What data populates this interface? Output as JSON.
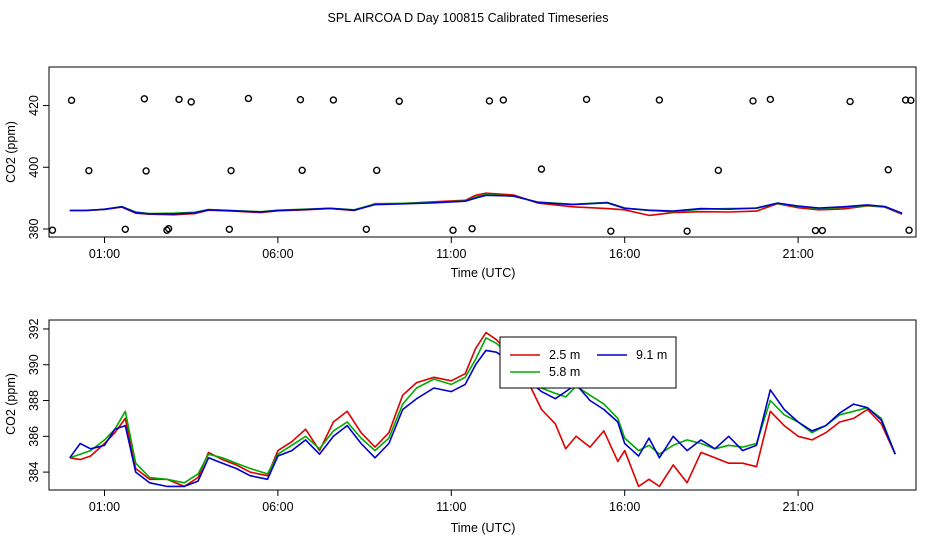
{
  "figure": {
    "title": "SPL AIRCOA D  Day 100815  Calibrated Timeseries"
  },
  "chart_data": [
    {
      "type": "line",
      "panel": "top",
      "title": "",
      "xlabel": "Time (UTC)",
      "ylabel": "CO2 (ppm)",
      "xlim": [
        -0.6,
        24.4
      ],
      "ylim": [
        377.4,
        432.5
      ],
      "x_ticks": [
        1,
        6,
        11,
        16,
        21
      ],
      "x_tick_labels": [
        "01:00",
        "06:00",
        "11:00",
        "16:00",
        "21:00"
      ],
      "y_ticks": [
        380,
        400,
        420
      ],
      "y_tick_labels": [
        "380",
        "400",
        "420"
      ],
      "grid": false,
      "series": [
        {
          "name": "2.5 m",
          "color": "#dd0000",
          "x": [
            0,
            0.5,
            1,
            1.5,
            1.9,
            2.3,
            3,
            3.6,
            4,
            4.7,
            5.5,
            6,
            6.8,
            7.5,
            8.2,
            8.8,
            9.5,
            10.5,
            11.4,
            11.7,
            12,
            12.8,
            13.5,
            14.5,
            15.5,
            16,
            16.7,
            17.4,
            18.2,
            19,
            19.8,
            20.4,
            21,
            21.6,
            22.3,
            23,
            23.5,
            24
          ],
          "y": [
            386.0,
            386.0,
            386.3,
            387.1,
            385.1,
            384.8,
            384.6,
            385.0,
            386.1,
            385.8,
            385.3,
            385.9,
            386.2,
            386.6,
            386.0,
            388.2,
            388.2,
            388.8,
            389.3,
            390.9,
            391.6,
            391.0,
            388.4,
            387.2,
            386.6,
            386.2,
            384.4,
            385.3,
            385.6,
            385.5,
            385.8,
            388.2,
            386.9,
            386.2,
            386.5,
            387.5,
            387.1,
            384.8
          ]
        },
        {
          "name": "5.8 m",
          "color": "#00aa00",
          "x": [
            0,
            0.5,
            1,
            1.5,
            1.9,
            2.3,
            3,
            3.6,
            4,
            4.7,
            5.5,
            6,
            6.8,
            7.5,
            8.2,
            8.8,
            9.5,
            10.5,
            11.4,
            11.7,
            12,
            12.8,
            13.5,
            14.5,
            15.5,
            16,
            16.7,
            17.4,
            18.2,
            19,
            19.8,
            20.4,
            21,
            21.6,
            22.3,
            23,
            23.5,
            24
          ],
          "y": [
            386.0,
            386.1,
            386.3,
            387.3,
            385.5,
            385.0,
            385.1,
            385.4,
            386.3,
            386.0,
            385.6,
            386.1,
            386.4,
            386.7,
            386.2,
            388.1,
            388.3,
            388.6,
            389.1,
            390.3,
            391.2,
            390.6,
            388.7,
            388.0,
            388.6,
            386.8,
            386.0,
            385.6,
            386.4,
            386.6,
            386.7,
            388.3,
            387.3,
            386.6,
            387.0,
            387.6,
            387.2,
            385.0
          ]
        },
        {
          "name": "9.1 m",
          "color": "#0000cc",
          "x": [
            0,
            0.5,
            1,
            1.5,
            1.9,
            2.3,
            3,
            3.6,
            4,
            4.7,
            5.5,
            6,
            6.8,
            7.5,
            8.2,
            8.8,
            9.5,
            10.5,
            11.4,
            11.7,
            12,
            12.8,
            13.5,
            14.5,
            15.5,
            16,
            16.7,
            17.4,
            18.2,
            19,
            19.8,
            20.4,
            21,
            21.6,
            22.3,
            23,
            23.5,
            24
          ],
          "y": [
            386.0,
            386.0,
            386.4,
            387.2,
            385.3,
            384.9,
            384.9,
            385.2,
            386.2,
            385.9,
            385.5,
            386.0,
            386.3,
            386.7,
            386.1,
            387.9,
            388.1,
            388.5,
            389.0,
            390.0,
            390.9,
            390.7,
            388.6,
            387.9,
            388.5,
            386.7,
            386.1,
            385.8,
            386.6,
            386.4,
            386.8,
            388.4,
            387.4,
            386.8,
            387.2,
            387.8,
            387.3,
            385.1
          ]
        }
      ],
      "outliers": {
        "marker": "open circle",
        "x": [
          -0.5,
          0.05,
          0.55,
          1.6,
          2.15,
          2.2,
          2.8,
          2.85,
          3.15,
          3.5,
          4.6,
          4.65,
          5.15,
          6.65,
          6.7,
          7.6,
          8.55,
          8.85,
          9.5,
          11.05,
          11.6,
          12.1,
          12.5,
          13.6,
          14.9,
          15.6,
          17,
          17.8,
          18.7,
          19.7,
          20.2,
          21.5,
          21.7,
          22.5,
          23.6,
          24.1,
          24.2,
          24.25
        ],
        "y": [
          379.6,
          421.7,
          398.9,
          379.9,
          422.2,
          398.8,
          379.6,
          380.1,
          422.0,
          421.2,
          379.9,
          398.9,
          422.3,
          421.9,
          399.0,
          421.8,
          379.9,
          399.0,
          421.4,
          379.6,
          380.1,
          421.5,
          421.8,
          399.4,
          422.0,
          379.3,
          421.8,
          379.3,
          399.0,
          421.5,
          422.0,
          379.5,
          379.5,
          421.3,
          399.2,
          421.8,
          379.6,
          421.7
        ]
      }
    },
    {
      "type": "line",
      "panel": "bottom",
      "title": "",
      "xlabel": "Time (UTC)",
      "ylabel": "CO2 (ppm)",
      "xlim": [
        -0.6,
        24.4
      ],
      "ylim": [
        383.0,
        392.5
      ],
      "x_ticks": [
        1,
        6,
        11,
        16,
        21
      ],
      "x_tick_labels": [
        "01:00",
        "06:00",
        "11:00",
        "16:00",
        "21:00"
      ],
      "y_ticks": [
        384,
        386,
        388,
        390,
        392
      ],
      "y_tick_labels": [
        "384",
        "386",
        "388",
        "390",
        "392"
      ],
      "grid": false,
      "legend": {
        "placement": "top-center",
        "entries": [
          {
            "label": "2.5 m",
            "color": "#dd0000"
          },
          {
            "label": "9.1 m",
            "color": "#0000cc"
          },
          {
            "label": "5.8 m",
            "color": "#00aa00"
          }
        ]
      },
      "series": [
        {
          "name": "2.5 m",
          "color": "#dd0000",
          "x": [
            0,
            0.3,
            0.6,
            1,
            1.3,
            1.6,
            1.9,
            2.3,
            2.8,
            3.3,
            3.7,
            4,
            4.4,
            4.8,
            5.2,
            5.7,
            6,
            6.4,
            6.8,
            7.2,
            7.6,
            8.0,
            8.4,
            8.8,
            9.2,
            9.6,
            10,
            10.5,
            11,
            11.4,
            11.7,
            12,
            12.3,
            12.7,
            13,
            13.3,
            13.6,
            14,
            14.3,
            14.6,
            15,
            15.4,
            15.8,
            16,
            16.4,
            16.7,
            17,
            17.4,
            17.8,
            18.2,
            18.6,
            19,
            19.4,
            19.8,
            20.2,
            20.6,
            21,
            21.4,
            21.8,
            22.2,
            22.6,
            23,
            23.4,
            23.8
          ],
          "y": [
            384.8,
            384.7,
            384.9,
            385.6,
            386.2,
            387.0,
            384.2,
            383.6,
            383.6,
            383.2,
            383.7,
            385.1,
            384.7,
            384.4,
            384.0,
            383.8,
            385.2,
            385.7,
            386.4,
            385.2,
            386.8,
            387.4,
            386.2,
            385.4,
            386.2,
            388.3,
            389.0,
            389.3,
            389.1,
            389.5,
            390.9,
            391.8,
            391.4,
            390.6,
            390.3,
            388.7,
            387.5,
            386.7,
            385.3,
            386.0,
            385.4,
            386.3,
            384.6,
            385.2,
            383.2,
            383.6,
            383.2,
            384.4,
            383.4,
            385.1,
            384.8,
            384.5,
            384.5,
            384.3,
            387.4,
            386.6,
            386.0,
            385.8,
            386.2,
            386.8,
            387.0,
            387.5,
            386.7,
            385.0
          ]
        },
        {
          "name": "5.8 m",
          "color": "#00aa00",
          "x": [
            0,
            0.3,
            0.6,
            1,
            1.3,
            1.6,
            1.9,
            2.3,
            2.8,
            3.3,
            3.7,
            4,
            4.4,
            4.8,
            5.2,
            5.7,
            6,
            6.4,
            6.8,
            7.2,
            7.6,
            8.0,
            8.4,
            8.8,
            9.2,
            9.6,
            10,
            10.5,
            11,
            11.4,
            11.7,
            12,
            12.3,
            12.7,
            13,
            13.3,
            13.6,
            14,
            14.3,
            14.6,
            15,
            15.4,
            15.8,
            16,
            16.4,
            16.7,
            17,
            17.4,
            17.8,
            18.2,
            18.6,
            19,
            19.4,
            19.8,
            20.2,
            20.6,
            21,
            21.4,
            21.8,
            22.2,
            22.6,
            23,
            23.4,
            23.8
          ],
          "y": [
            384.8,
            385.0,
            385.2,
            385.8,
            386.4,
            387.4,
            384.5,
            383.7,
            383.6,
            383.4,
            383.9,
            385.0,
            384.8,
            384.5,
            384.2,
            383.9,
            385.0,
            385.5,
            386.0,
            385.3,
            386.3,
            386.8,
            385.9,
            385.2,
            385.9,
            387.8,
            388.7,
            389.2,
            388.9,
            389.3,
            390.3,
            391.5,
            391.2,
            390.5,
            390.4,
            389.3,
            388.7,
            388.4,
            388.2,
            388.8,
            388.3,
            387.8,
            387.0,
            385.9,
            385.2,
            385.5,
            385.0,
            385.5,
            385.8,
            385.6,
            385.3,
            385.5,
            385.4,
            385.6,
            388.0,
            387.2,
            386.8,
            386.2,
            386.6,
            387.2,
            387.4,
            387.6,
            387.0,
            385.0
          ]
        },
        {
          "name": "9.1 m",
          "color": "#0000cc",
          "x": [
            0,
            0.3,
            0.6,
            1,
            1.3,
            1.6,
            1.9,
            2.3,
            2.8,
            3.3,
            3.7,
            4,
            4.4,
            4.8,
            5.2,
            5.7,
            6,
            6.4,
            6.8,
            7.2,
            7.6,
            8.0,
            8.4,
            8.8,
            9.2,
            9.6,
            10,
            10.5,
            11,
            11.4,
            11.7,
            12,
            12.3,
            12.7,
            13,
            13.3,
            13.6,
            14,
            14.3,
            14.6,
            15,
            15.4,
            15.8,
            16,
            16.4,
            16.7,
            17,
            17.4,
            17.8,
            18.2,
            18.6,
            19,
            19.4,
            19.8,
            20.2,
            20.6,
            21,
            21.4,
            21.8,
            22.2,
            22.6,
            23,
            23.4,
            23.8
          ],
          "y": [
            384.8,
            385.6,
            385.3,
            385.5,
            386.4,
            386.6,
            384.0,
            383.4,
            383.2,
            383.2,
            383.5,
            384.8,
            384.5,
            384.2,
            383.8,
            383.6,
            384.9,
            385.2,
            385.8,
            385.0,
            386.0,
            386.6,
            385.6,
            384.8,
            385.6,
            387.5,
            388.1,
            388.7,
            388.5,
            388.9,
            390.0,
            390.8,
            390.7,
            390.2,
            390.0,
            389.0,
            388.5,
            388.1,
            388.5,
            388.9,
            388.0,
            387.5,
            386.8,
            385.6,
            384.9,
            385.9,
            384.8,
            386.0,
            385.2,
            385.8,
            385.3,
            386.0,
            385.2,
            385.5,
            388.6,
            387.5,
            386.8,
            386.3,
            386.6,
            387.3,
            387.8,
            387.6,
            386.9,
            385.0
          ]
        }
      ]
    }
  ]
}
